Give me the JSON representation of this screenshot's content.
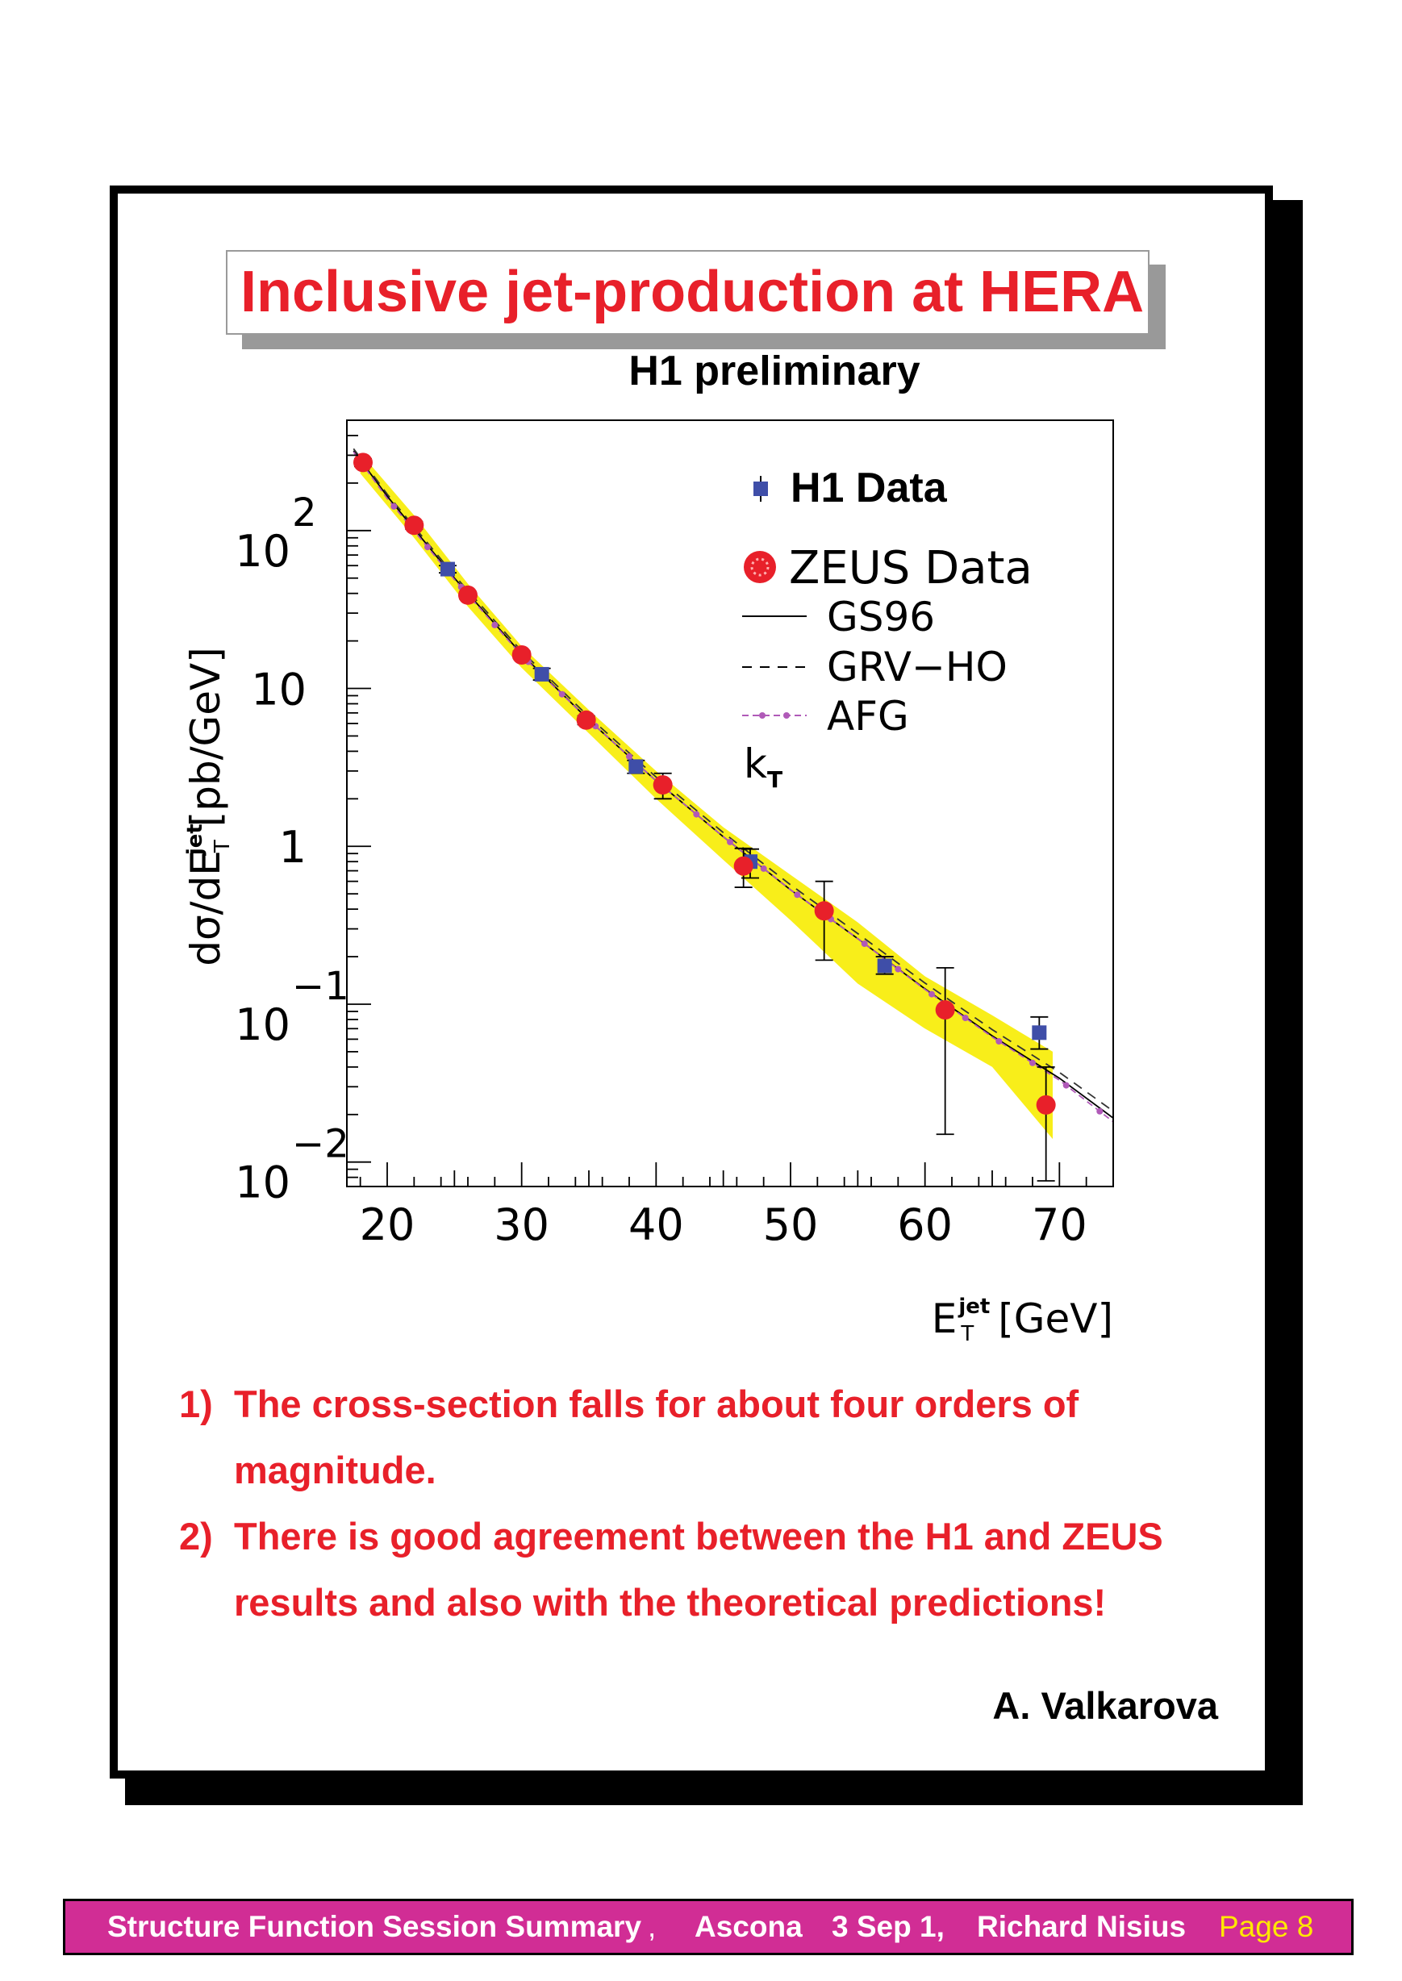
{
  "slide": {
    "title": "Inclusive jet-production at HERA",
    "notes": [
      {
        "num": "1)",
        "line1": "The cross-section falls for about four orders of",
        "line2": "magnitude."
      },
      {
        "num": "2)",
        "line1": "There is good agreement between the H1 and ZEUS",
        "line2": "results and also with the theoretical predictions!"
      }
    ],
    "author": "A. Valkarova"
  },
  "footer": {
    "session": "Structure Function Session Summary",
    "comma": ",",
    "place": "Ascona",
    "date": "3 Sep 1,",
    "speaker": "Richard Nisius",
    "page": "Page 8"
  },
  "colors": {
    "accent_red": "#e8202a",
    "footer_bg": "#d12d95",
    "page_yellow": "#ffe800",
    "band_yellow": "#f8ee1a",
    "h1_blue": "#3f4ea8",
    "zeus_red": "#e8202a",
    "afg_purple": "#b05ab8"
  },
  "chart_data": {
    "type": "scatter",
    "title": "H1 preliminary",
    "xlabel_main": "E",
    "xlabel_sup": "jet",
    "xlabel_sub": "T",
    "xlabel_unit": "[GeV]",
    "ylabel_main": "dσ/dE",
    "ylabel_sup": "jet",
    "ylabel_sub": "T",
    "ylabel_unit": "[pb/GeV]",
    "y_scale": "log",
    "xlim": [
      17,
      74
    ],
    "ylim": [
      0.007,
      500
    ],
    "x_ticks": [
      {
        "value": 20,
        "label": "20"
      },
      {
        "value": 30,
        "label": "30"
      },
      {
        "value": 40,
        "label": "40"
      },
      {
        "value": 50,
        "label": "50"
      },
      {
        "value": 60,
        "label": "60"
      },
      {
        "value": 70,
        "label": "70"
      }
    ],
    "y_ticks": [
      {
        "value": 0.01,
        "base": "10",
        "exp": "−2"
      },
      {
        "value": 0.1,
        "base": "10",
        "exp": "−1"
      },
      {
        "value": 1,
        "base": "1",
        "exp": ""
      },
      {
        "value": 10,
        "base": "10",
        "exp": ""
      },
      {
        "value": 100,
        "base": "10",
        "exp": "2"
      }
    ],
    "legend": {
      "position": "top-right",
      "entries": [
        {
          "label": "H1 Data",
          "style": "blue-square"
        },
        {
          "label": "ZEUS Data",
          "style": "red-circle"
        },
        {
          "label": "GS96",
          "style": "solid"
        },
        {
          "label": "GRV−HO",
          "style": "dashed"
        },
        {
          "label": "AFG",
          "style": "dotted-markers"
        }
      ],
      "note_main": "k",
      "note_sub": "T"
    },
    "series": [
      {
        "name": "H1 Data",
        "points": [
          {
            "x": 24.5,
            "y": 57,
            "ylo": 54,
            "yhi": 60
          },
          {
            "x": 31.5,
            "y": 12.3,
            "ylo": 11.3,
            "yhi": 13.4
          },
          {
            "x": 38.5,
            "y": 3.2,
            "ylo": 2.9,
            "yhi": 3.5
          },
          {
            "x": 47.0,
            "y": 0.8,
            "ylo": 0.63,
            "yhi": 0.96
          },
          {
            "x": 57.0,
            "y": 0.175,
            "ylo": 0.155,
            "yhi": 0.2
          },
          {
            "x": 68.5,
            "y": 0.066,
            "ylo": 0.052,
            "yhi": 0.083
          }
        ]
      },
      {
        "name": "ZEUS Data",
        "points": [
          {
            "x": 18.2,
            "y": 270,
            "ylo": 255,
            "yhi": 285
          },
          {
            "x": 22.0,
            "y": 108,
            "ylo": 102,
            "yhi": 114
          },
          {
            "x": 26.0,
            "y": 39,
            "ylo": 37,
            "yhi": 41
          },
          {
            "x": 30.0,
            "y": 16.3,
            "ylo": 15.5,
            "yhi": 17.2
          },
          {
            "x": 34.8,
            "y": 6.3,
            "ylo": 5.9,
            "yhi": 6.7
          },
          {
            "x": 40.5,
            "y": 2.45,
            "ylo": 2.0,
            "yhi": 2.9
          },
          {
            "x": 46.5,
            "y": 0.75,
            "ylo": 0.55,
            "yhi": 0.97
          },
          {
            "x": 52.5,
            "y": 0.39,
            "ylo": 0.19,
            "yhi": 0.6
          },
          {
            "x": 61.5,
            "y": 0.092,
            "ylo": 0.015,
            "yhi": 0.17
          },
          {
            "x": 69.0,
            "y": 0.023,
            "ylo": 0.0076,
            "yhi": 0.04
          }
        ]
      }
    ],
    "theory": [
      {
        "name": "GS96",
        "style": "solid",
        "points": [
          [
            17.5,
            320
          ],
          [
            20,
            165
          ],
          [
            25,
            50
          ],
          [
            30,
            16.5
          ],
          [
            35,
            6.3
          ],
          [
            40,
            2.6
          ],
          [
            45,
            1.15
          ],
          [
            50,
            0.53
          ],
          [
            55,
            0.26
          ],
          [
            60,
            0.125
          ],
          [
            65,
            0.063
          ],
          [
            70,
            0.034
          ],
          [
            74,
            0.019
          ]
        ]
      },
      {
        "name": "GRV−HO",
        "style": "dashed",
        "points": [
          [
            17.5,
            330
          ],
          [
            20,
            170
          ],
          [
            25,
            52
          ],
          [
            30,
            17.2
          ],
          [
            35,
            6.6
          ],
          [
            40,
            2.75
          ],
          [
            45,
            1.22
          ],
          [
            50,
            0.57
          ],
          [
            55,
            0.28
          ],
          [
            60,
            0.136
          ],
          [
            65,
            0.069
          ],
          [
            70,
            0.037
          ],
          [
            74,
            0.021
          ]
        ]
      },
      {
        "name": "AFG",
        "style": "dotted-markers",
        "points": [
          [
            17.5,
            315
          ],
          [
            20,
            160
          ],
          [
            25,
            49
          ],
          [
            30,
            16.2
          ],
          [
            35,
            6.3
          ],
          [
            40,
            2.6
          ],
          [
            45,
            1.15
          ],
          [
            50,
            0.53
          ],
          [
            55,
            0.26
          ],
          [
            60,
            0.124
          ],
          [
            65,
            0.062
          ],
          [
            70,
            0.033
          ],
          [
            74,
            0.018
          ]
        ]
      }
    ],
    "band": {
      "x": [
        18,
        22,
        26,
        30,
        35,
        40,
        45,
        50,
        55,
        60,
        65,
        69.5
      ],
      "lo": [
        230,
        90,
        33,
        13.5,
        5.2,
        2.0,
        0.82,
        0.34,
        0.135,
        0.07,
        0.04,
        0.014
      ],
      "hi": [
        310,
        125,
        46,
        18.5,
        7.3,
        3.0,
        1.32,
        0.66,
        0.33,
        0.15,
        0.085,
        0.05
      ]
    }
  }
}
